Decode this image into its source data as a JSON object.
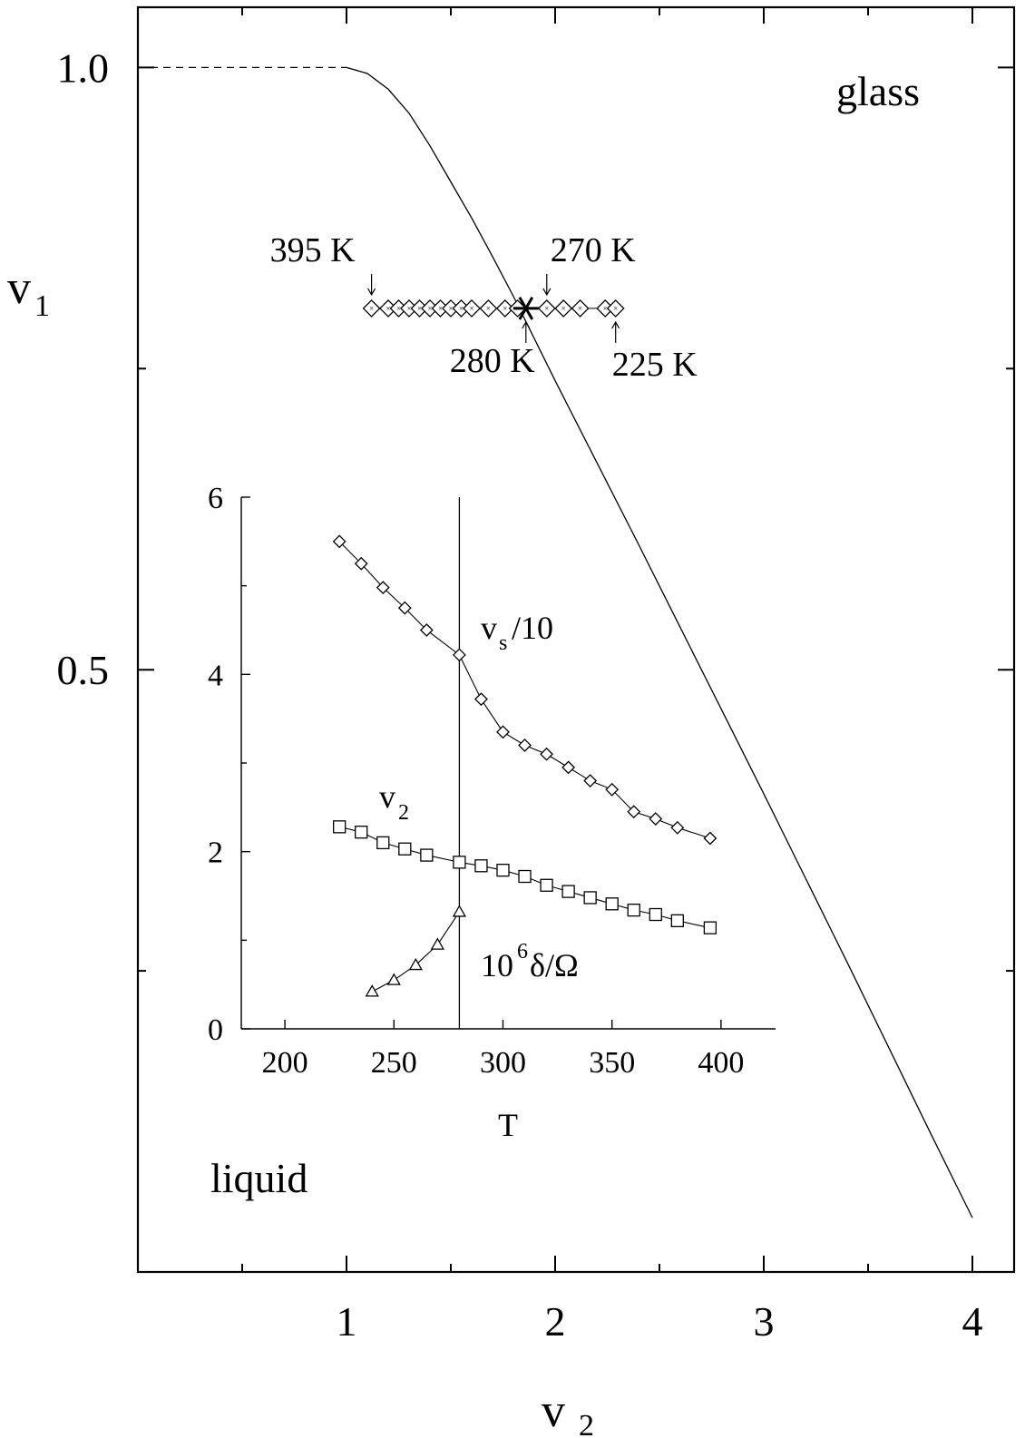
{
  "chart_data": [
    {
      "type": "line",
      "xlabel": "v",
      "xlabel_sub": "2",
      "ylabel": "v",
      "ylabel_sub": "1",
      "xlim": [
        0.0,
        4.2
      ],
      "ylim": [
        0.0,
        1.05
      ],
      "xticks": [
        1,
        2,
        3,
        4
      ],
      "xtick_labels": [
        "1",
        "2",
        "3",
        "4"
      ],
      "xminor": [
        0.5,
        1.5,
        2.5,
        3.5
      ],
      "yticks": [
        0.5,
        1.0
      ],
      "ytick_labels": [
        "0.5",
        "1.0"
      ],
      "yminor": [
        0.25,
        0.75
      ],
      "regions": {
        "upper": "glass",
        "lower": "liquid"
      },
      "series": [
        {
          "style": "dashed",
          "x": [
            0.0,
            1.0
          ],
          "y": [
            1.0,
            1.0
          ]
        },
        {
          "style": "solid",
          "x": [
            1.0,
            1.1,
            1.2,
            1.3,
            1.4,
            1.5,
            1.6,
            1.7,
            1.8,
            1.9,
            2.0,
            2.2,
            2.4,
            2.6,
            2.8,
            3.0,
            3.2,
            3.4,
            3.6,
            3.8,
            4.0
          ],
          "y": [
            1.0,
            0.995,
            0.982,
            0.962,
            0.935,
            0.905,
            0.875,
            0.843,
            0.81,
            0.775,
            0.74,
            0.672,
            0.604,
            0.535,
            0.466,
            0.397,
            0.327,
            0.257,
            0.186,
            0.115,
            0.045
          ]
        },
        {
          "style": "markers",
          "marker": "diamond",
          "x": [
            1.12,
            1.2,
            1.25,
            1.3,
            1.35,
            1.4,
            1.45,
            1.5,
            1.55,
            1.6,
            1.68,
            1.76,
            1.82,
            1.96,
            2.04,
            2.12,
            2.24,
            2.29
          ],
          "y": [
            0.8,
            0.8,
            0.8,
            0.8,
            0.8,
            0.8,
            0.8,
            0.8,
            0.8,
            0.8,
            0.8,
            0.8,
            0.8,
            0.8,
            0.8,
            0.8,
            0.8,
            0.8
          ]
        }
      ],
      "critical_point": {
        "x": 1.86,
        "y": 0.8
      },
      "temperature_labels": [
        {
          "text": "395 K",
          "x": 1.12,
          "position": "above"
        },
        {
          "text": "270 K",
          "x": 1.96,
          "position": "above"
        },
        {
          "text": "280 K",
          "x": 1.86,
          "position": "below"
        },
        {
          "text": "225 K",
          "x": 2.29,
          "position": "below"
        }
      ]
    },
    {
      "type": "line",
      "inset": true,
      "xlabel": "T",
      "xlim": [
        180,
        425
      ],
      "ylim": [
        0,
        6
      ],
      "xticks": [
        200,
        250,
        300,
        350,
        400
      ],
      "xtick_labels": [
        "200",
        "250",
        "300",
        "350",
        "400"
      ],
      "yticks": [
        0,
        2,
        4,
        6
      ],
      "ytick_labels": [
        "0",
        "2",
        "4",
        "6"
      ],
      "yminor": [
        1,
        3,
        5
      ],
      "vline_x": 280,
      "series": [
        {
          "name": "v_s/10",
          "label": {
            "main": "v",
            "sub": "s",
            "rest": "/10"
          },
          "marker": "diamond",
          "x": [
            225,
            235,
            245,
            255,
            265,
            280,
            290,
            300,
            310,
            320,
            330,
            340,
            350,
            360,
            370,
            380,
            395
          ],
          "y": [
            5.5,
            5.25,
            4.98,
            4.75,
            4.5,
            4.22,
            3.72,
            3.35,
            3.2,
            3.1,
            2.95,
            2.8,
            2.7,
            2.45,
            2.37,
            2.27,
            2.15
          ]
        },
        {
          "name": "v_2",
          "label": {
            "main": "v",
            "sub": "2",
            "rest": ""
          },
          "marker": "square",
          "x": [
            225,
            235,
            245,
            255,
            265,
            280,
            290,
            300,
            310,
            320,
            330,
            340,
            350,
            360,
            370,
            380,
            395
          ],
          "y": [
            2.28,
            2.22,
            2.1,
            2.03,
            1.96,
            1.88,
            1.84,
            1.79,
            1.72,
            1.62,
            1.55,
            1.48,
            1.41,
            1.34,
            1.29,
            1.22,
            1.14
          ]
        },
        {
          "name": "10^6 δ/Ω",
          "label": {
            "main": "10",
            "sup": "6",
            "rest": " δ/Ω"
          },
          "marker": "triangle",
          "x": [
            240,
            250,
            260,
            270,
            280
          ],
          "y": [
            0.42,
            0.55,
            0.72,
            0.95,
            1.32
          ]
        }
      ]
    }
  ]
}
